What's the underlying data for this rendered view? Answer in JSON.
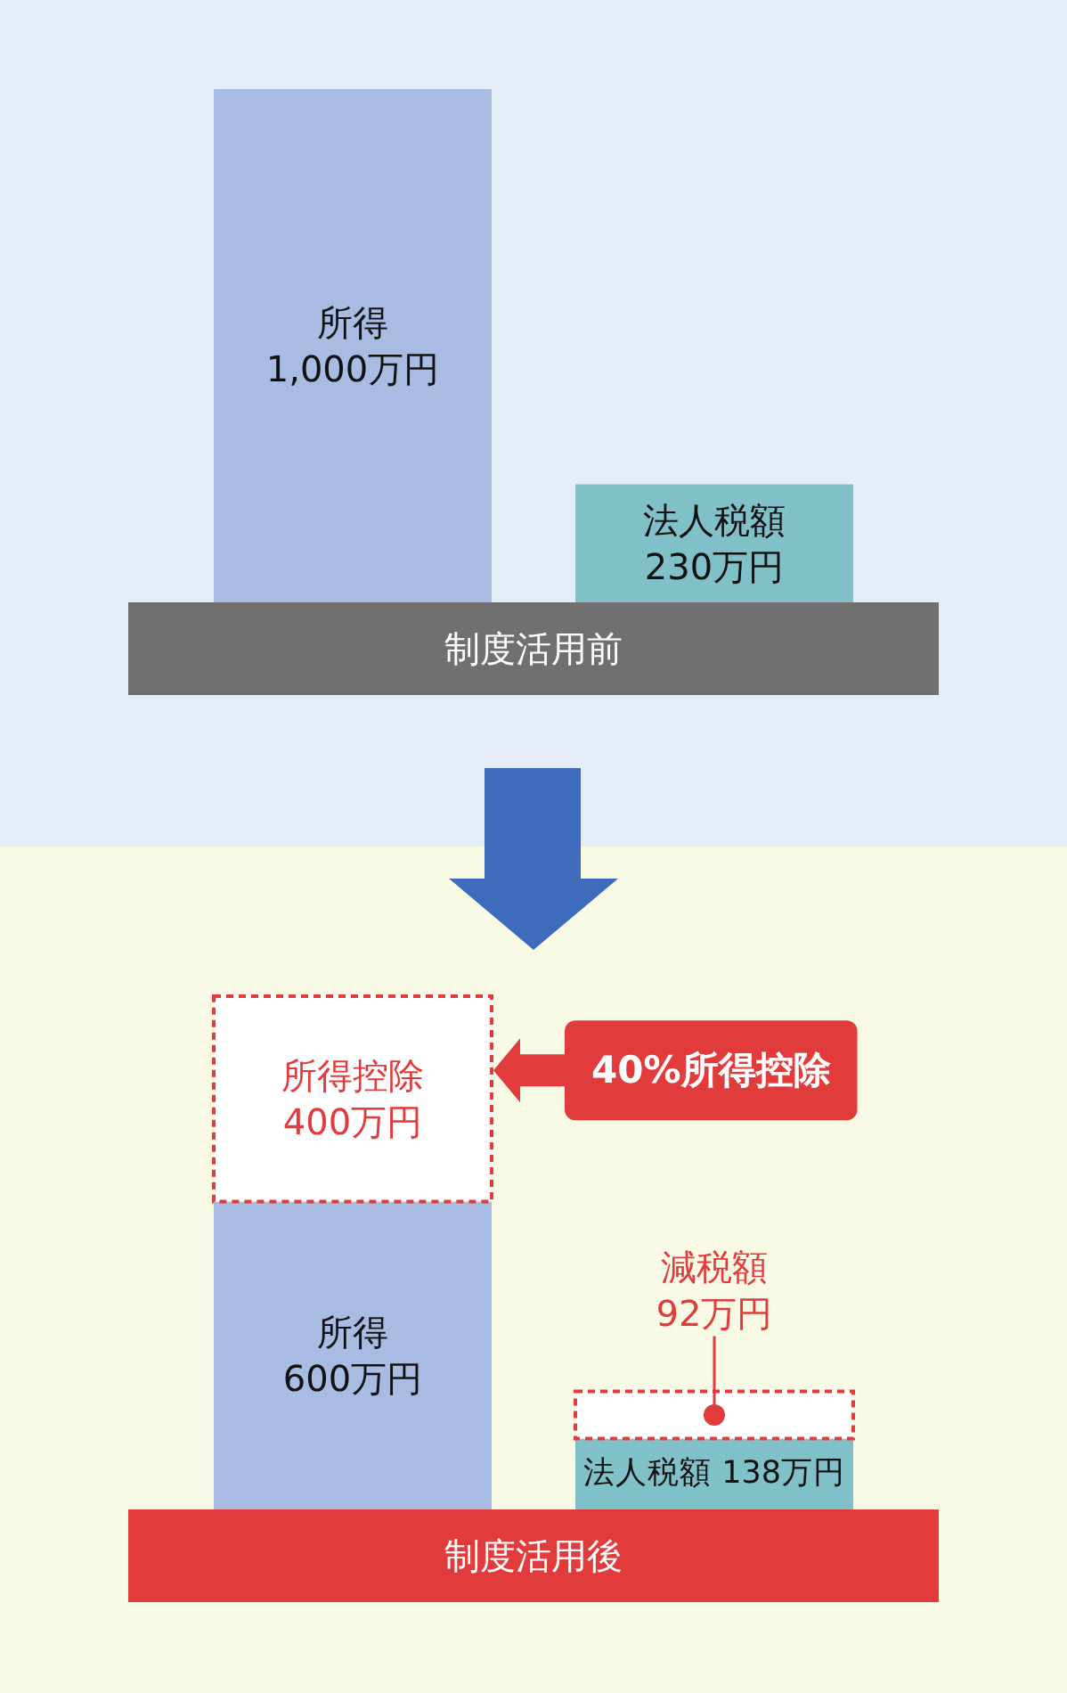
{
  "chart_data": [
    {
      "type": "bar",
      "xlabel": "制度活用前",
      "categories": [
        null,
        null
      ],
      "values": [
        1000,
        230
      ],
      "colors": [
        "#a7bbe3",
        "#80c1c9"
      ],
      "value_labels": [
        "所得\n1,000万円",
        "法人税額\n230万円"
      ]
    },
    {
      "type": "bar",
      "stacked": true,
      "xlabel": "制度活用後",
      "categories": [
        null,
        null
      ],
      "series": [
        {
          "color": "#a7bbe3",
          "values": [
            600,
            null
          ],
          "value_labels": [
            "所得\n600万円",
            null
          ]
        },
        {
          "color": "#ffffff",
          "line_style": "dashed",
          "values": [
            400,
            null
          ],
          "value_labels": [
            "所得控除\n400万円",
            null
          ]
        },
        {
          "color": "#80c1c9",
          "values": [
            null,
            138
          ],
          "value_labels": [
            null,
            "法人税額\n138万円"
          ]
        },
        {
          "color": "#ffffff",
          "line_style": "dashed",
          "values": [
            null,
            92
          ],
          "value_labels": [
            null,
            "減税額\n92万円"
          ]
        }
      ],
      "annotations": [
        "40%所得控除"
      ]
    }
  ]
}
